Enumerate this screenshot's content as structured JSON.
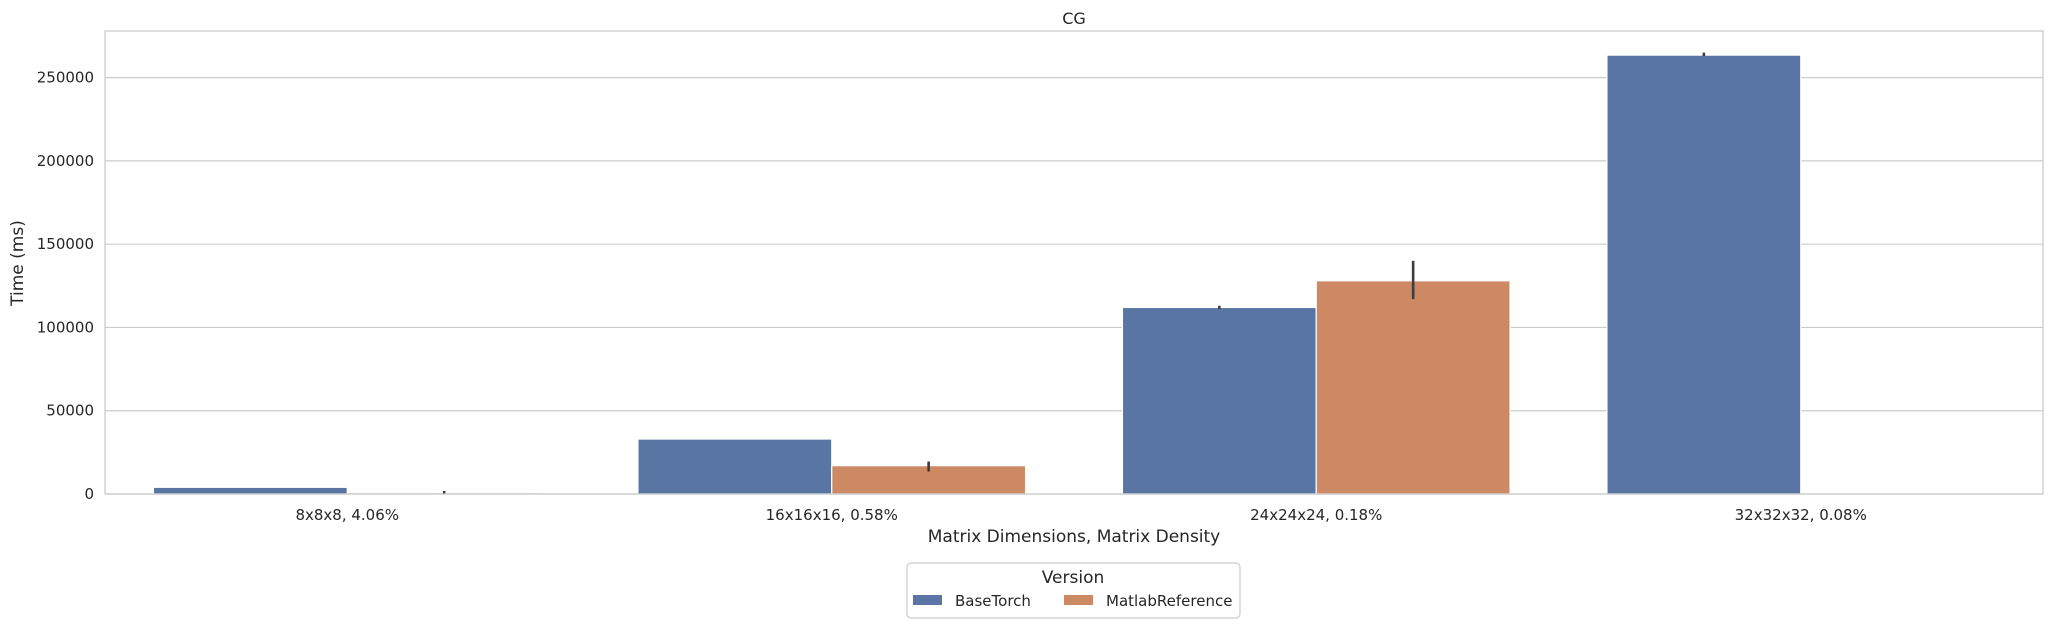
{
  "chart_data": {
    "type": "bar",
    "title": "CG",
    "xlabel": "Matrix Dimensions, Matrix Density",
    "ylabel": "Time (ms)",
    "categories": [
      "8x8x8, 4.06%",
      "16x16x16, 0.58%",
      "24x24x24, 0.18%",
      "32x32x32, 0.08%"
    ],
    "ylim": [
      0,
      278000
    ],
    "yticks": [
      0,
      50000,
      100000,
      150000,
      200000,
      250000
    ],
    "grid": true,
    "legend": {
      "title": "Version",
      "placement": "bottom-center"
    },
    "series": [
      {
        "name": "BaseTorch",
        "color": "#5875a4",
        "values": [
          4000,
          33000,
          112000,
          263500
        ],
        "err_low": [
          null,
          null,
          111000,
          263000
        ],
        "err_high": [
          null,
          null,
          113000,
          265000
        ]
      },
      {
        "name": "MatlabReference",
        "color": "#cc8963",
        "values": [
          800,
          17000,
          128000,
          null
        ],
        "err_low": [
          0,
          13500,
          117000,
          null
        ],
        "err_high": [
          1800,
          19500,
          140000,
          null
        ]
      }
    ]
  }
}
